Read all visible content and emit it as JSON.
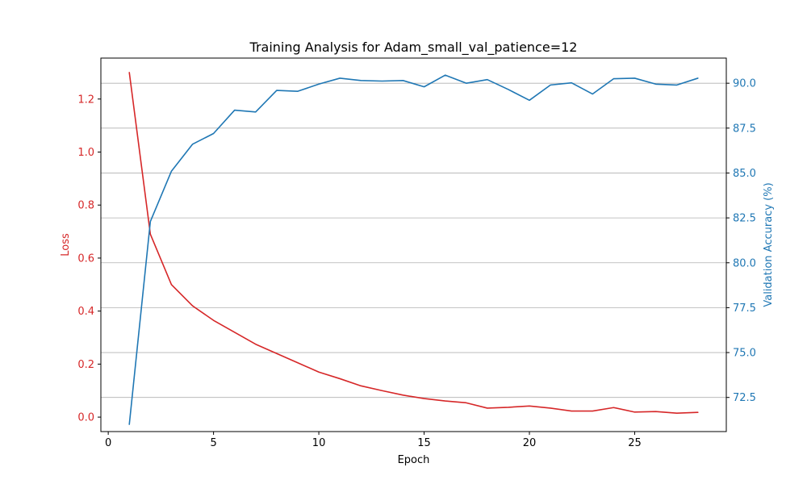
{
  "chart_data": {
    "type": "line",
    "title": "Training Analysis for Adam_small_val_patience=12",
    "xlabel": "Epoch",
    "ylabel_left": "Loss",
    "ylabel_right": "Validation Accuracy (%)",
    "x": [
      1,
      2,
      3,
      4,
      5,
      6,
      7,
      8,
      9,
      10,
      11,
      12,
      13,
      14,
      15,
      16,
      17,
      18,
      19,
      20,
      21,
      22,
      23,
      24,
      25,
      26,
      27,
      28
    ],
    "xlim": [
      -0.35,
      29.35
    ],
    "x_ticks": [
      0,
      5,
      10,
      15,
      20,
      25
    ],
    "ylim_left": [
      -0.0545,
      1.3545
    ],
    "y_ticks_left": [
      0.0,
      0.2,
      0.4,
      0.6,
      0.8,
      1.0,
      1.2
    ],
    "ylim_right": [
      70.6,
      91.4
    ],
    "y_ticks_right": [
      72.5,
      75.0,
      77.5,
      80.0,
      82.5,
      85.0,
      87.5,
      90.0
    ],
    "grid": "horizontal (right axis)",
    "series": [
      {
        "name": "",
        "axis": "left",
        "color": "#d62728",
        "values": [
          1.3,
          0.69,
          0.5,
          0.42,
          0.365,
          0.32,
          0.275,
          0.24,
          0.205,
          0.17,
          0.145,
          0.118,
          0.1,
          0.083,
          0.07,
          0.061,
          0.054,
          0.034,
          0.037,
          0.042,
          0.034,
          0.023,
          0.023,
          0.036,
          0.019,
          0.021,
          0.015,
          0.018
        ]
      },
      {
        "name": "",
        "axis": "right",
        "color": "#1f77b4",
        "values": [
          71.0,
          82.3,
          85.1,
          86.6,
          87.2,
          88.5,
          88.4,
          89.6,
          89.55,
          89.95,
          90.28,
          90.15,
          90.12,
          90.15,
          89.8,
          90.45,
          90.0,
          90.2,
          89.65,
          89.05,
          89.9,
          90.02,
          89.4,
          90.25,
          90.28,
          89.95,
          89.9,
          90.28
        ]
      }
    ]
  }
}
